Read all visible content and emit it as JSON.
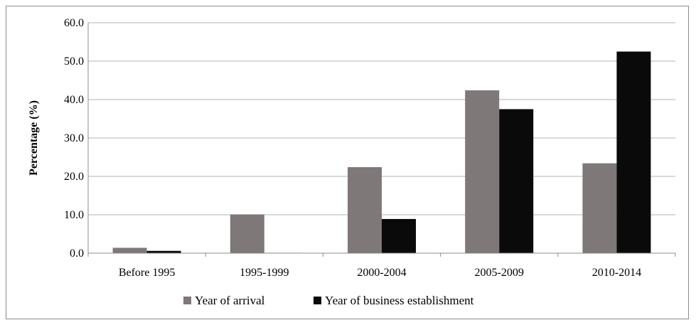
{
  "chart_data": {
    "type": "bar",
    "title": "",
    "xlabel": "",
    "ylabel": "Percentage (%)",
    "ylim": [
      0,
      60
    ],
    "yticks": [
      0,
      10,
      20,
      30,
      40,
      50,
      60
    ],
    "ytick_labels": [
      "0.0",
      "10.0",
      "20.0",
      "30.0",
      "40.0",
      "50.0",
      "60.0"
    ],
    "grid": true,
    "legend_position": "bottom",
    "categories": [
      "Before 1995",
      "1995-1999",
      "2000-2004",
      "2005-2009",
      "2010-2014"
    ],
    "series": [
      {
        "name": "Year of arrival",
        "color": "#7f7878",
        "values": [
          1.4,
          10.1,
          22.4,
          42.4,
          23.4
        ]
      },
      {
        "name": "Year of business establishment",
        "color": "#0a0a0a",
        "values": [
          0.6,
          0.1,
          8.9,
          37.5,
          52.5
        ]
      }
    ]
  }
}
